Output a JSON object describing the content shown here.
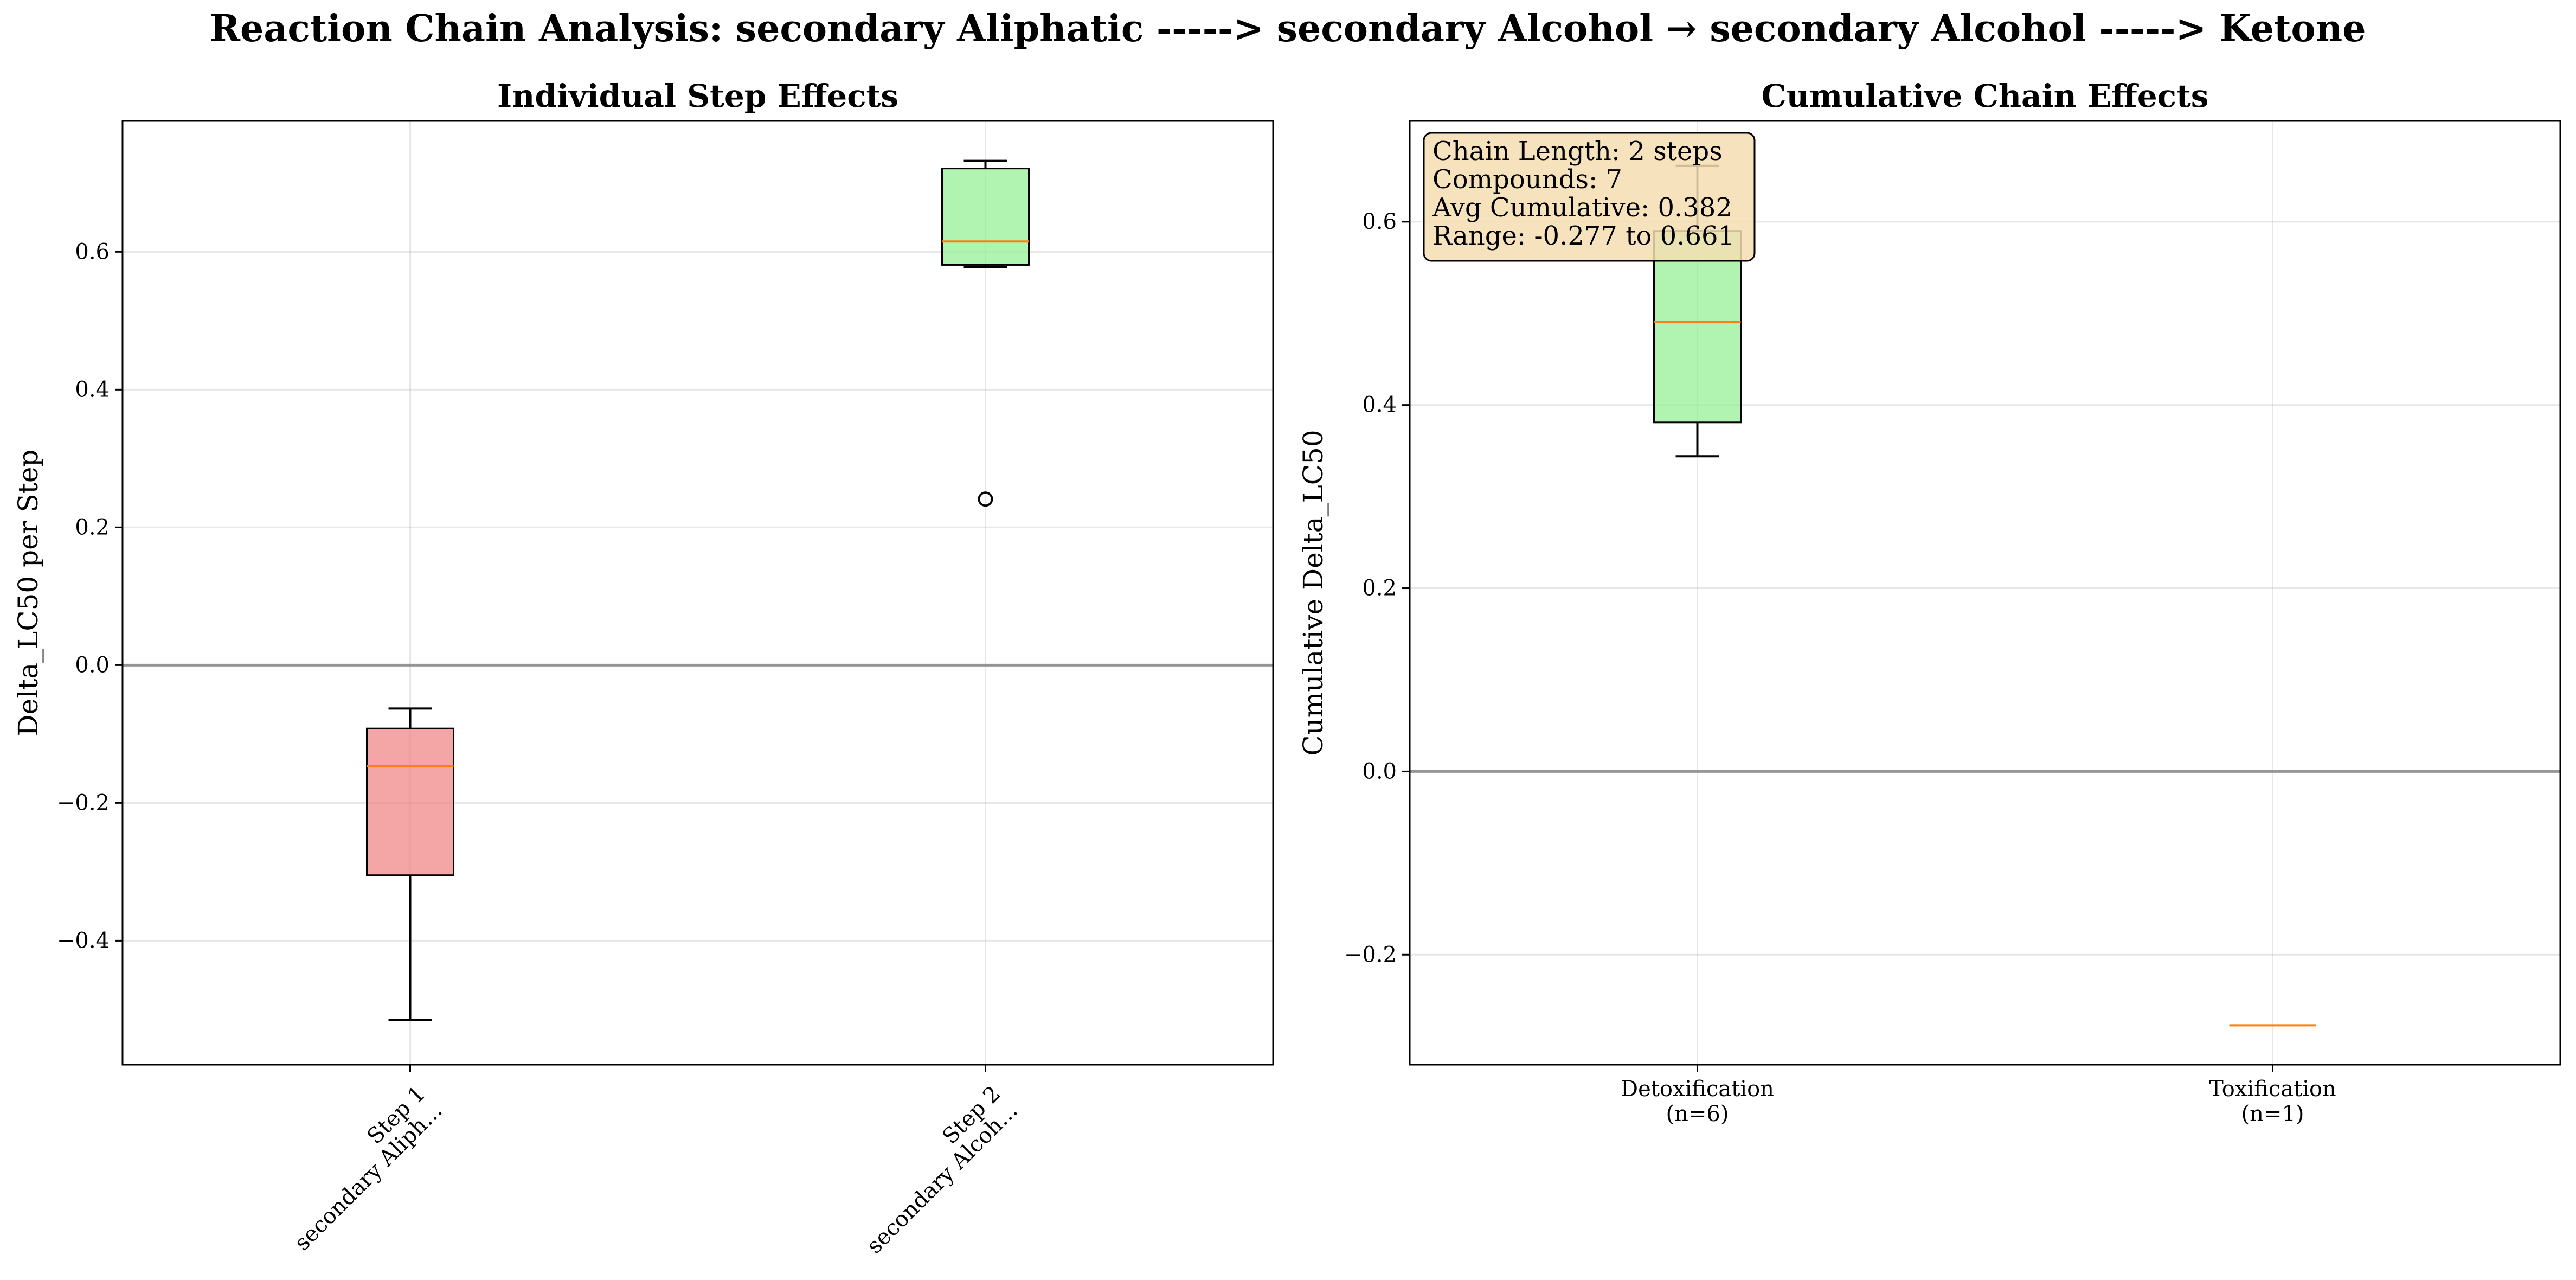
{
  "figure": {
    "title": "Reaction Chain Analysis: secondary Aliphatic -----> secondary Alcohol → secondary Alcohol -----> Ketone"
  },
  "chart_data": [
    {
      "type": "box",
      "title": "Individual Step Effects",
      "xlabel": "",
      "ylabel": "Delta_LC50 per Step",
      "ylim": [
        -0.58,
        0.79
      ],
      "yticks": [
        -0.4,
        -0.2,
        0.0,
        0.2,
        0.4,
        0.6
      ],
      "grid": true,
      "reference_line_y": 0.0,
      "categories": [
        "Step 1\nsecondary Aliph...",
        "Step 2\nsecondary Alcoh..."
      ],
      "boxes": [
        {
          "label": "Step 1\nsecondary Aliph...",
          "whisker_low": -0.515,
          "q1": -0.305,
          "median": -0.147,
          "q3": -0.092,
          "whisker_high": -0.063,
          "outliers": [],
          "color": "#f08080"
        },
        {
          "label": "Step 2\nsecondary Alcoh...",
          "whisker_low": 0.578,
          "q1": 0.581,
          "median": 0.615,
          "q3": 0.721,
          "whisker_high": 0.732,
          "outliers": [
            0.241
          ],
          "color": "#90ee90"
        }
      ]
    },
    {
      "type": "box",
      "title": "Cumulative Chain Effects",
      "xlabel": "",
      "ylabel": "Cumulative Delta_LC50",
      "ylim": [
        -0.32,
        0.71
      ],
      "yticks": [
        -0.2,
        0.0,
        0.2,
        0.4,
        0.6
      ],
      "grid": true,
      "reference_line_y": 0.0,
      "categories": [
        "Detoxification\n(n=6)",
        "Toxification\n(n=1)"
      ],
      "boxes": [
        {
          "label": "Detoxification\n(n=6)",
          "whisker_low": 0.344,
          "q1": 0.381,
          "median": 0.491,
          "q3": 0.59,
          "whisker_high": 0.661,
          "outliers": [],
          "color": "#90ee90"
        },
        {
          "label": "Toxification\n(n=1)",
          "whisker_low": -0.277,
          "q1": -0.277,
          "median": -0.277,
          "q3": -0.277,
          "whisker_high": -0.277,
          "outliers": [],
          "color": "#f08080"
        }
      ],
      "annotation": [
        "Chain Length: 2 steps",
        "Compounds: 7",
        "Avg Cumulative: 0.382",
        "Range: -0.277 to 0.661"
      ]
    }
  ]
}
